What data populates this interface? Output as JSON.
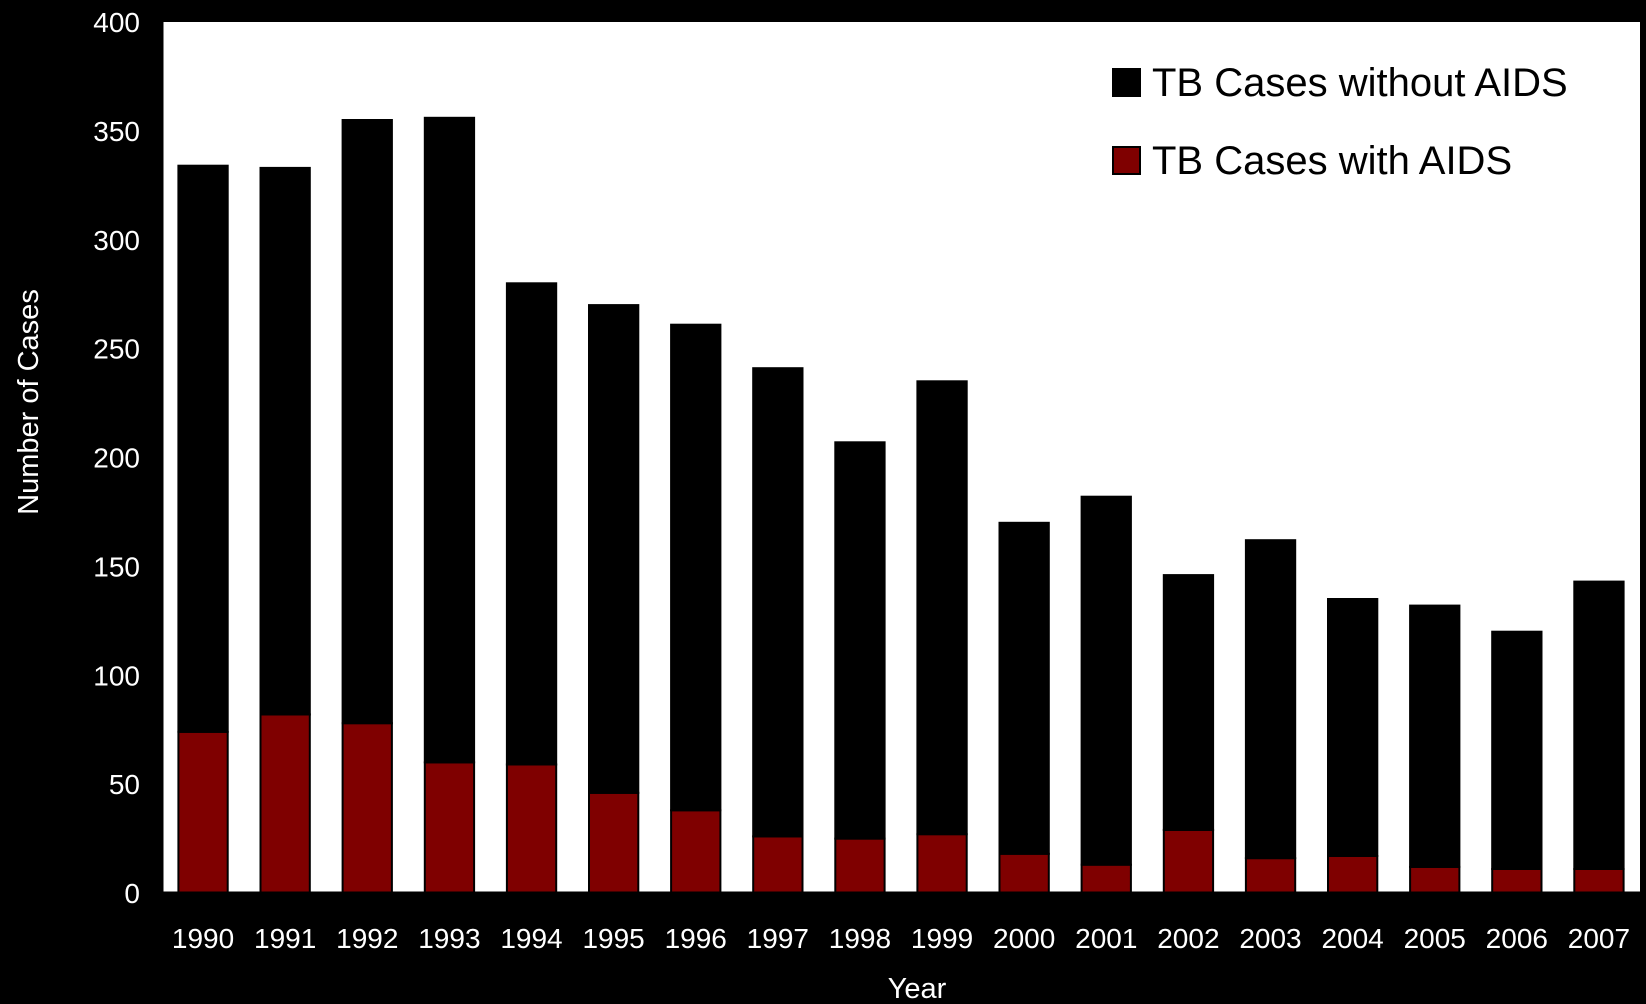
{
  "chart_data": {
    "type": "bar",
    "stacked": true,
    "title": "",
    "xlabel": "Year",
    "ylabel": "Number of Cases",
    "ylim": [
      0,
      400
    ],
    "yticks": [
      0,
      50,
      100,
      150,
      200,
      250,
      300,
      350,
      400
    ],
    "categories": [
      "1990",
      "1991",
      "1992",
      "1993",
      "1994",
      "1995",
      "1996",
      "1997",
      "1998",
      "1999",
      "2000",
      "2001",
      "2002",
      "2003",
      "2004",
      "2005",
      "2006",
      "2007"
    ],
    "series": [
      {
        "name": "TB Cases with AIDS",
        "color": "#7f0000",
        "values": [
          74,
          82,
          78,
          60,
          59,
          46,
          38,
          26,
          25,
          27,
          18,
          13,
          29,
          16,
          17,
          12,
          11,
          11
        ]
      },
      {
        "name": "TB Cases without AIDS",
        "color": "#000000",
        "values": [
          260,
          251,
          277,
          296,
          221,
          224,
          223,
          215,
          182,
          208,
          152,
          169,
          117,
          146,
          118,
          120,
          109,
          132
        ]
      }
    ],
    "grid": false,
    "legend_position": "top-right",
    "background": "#ffffff",
    "outer_background": "#000000",
    "legend_order": [
      "TB Cases without AIDS",
      "TB Cases with AIDS"
    ]
  }
}
